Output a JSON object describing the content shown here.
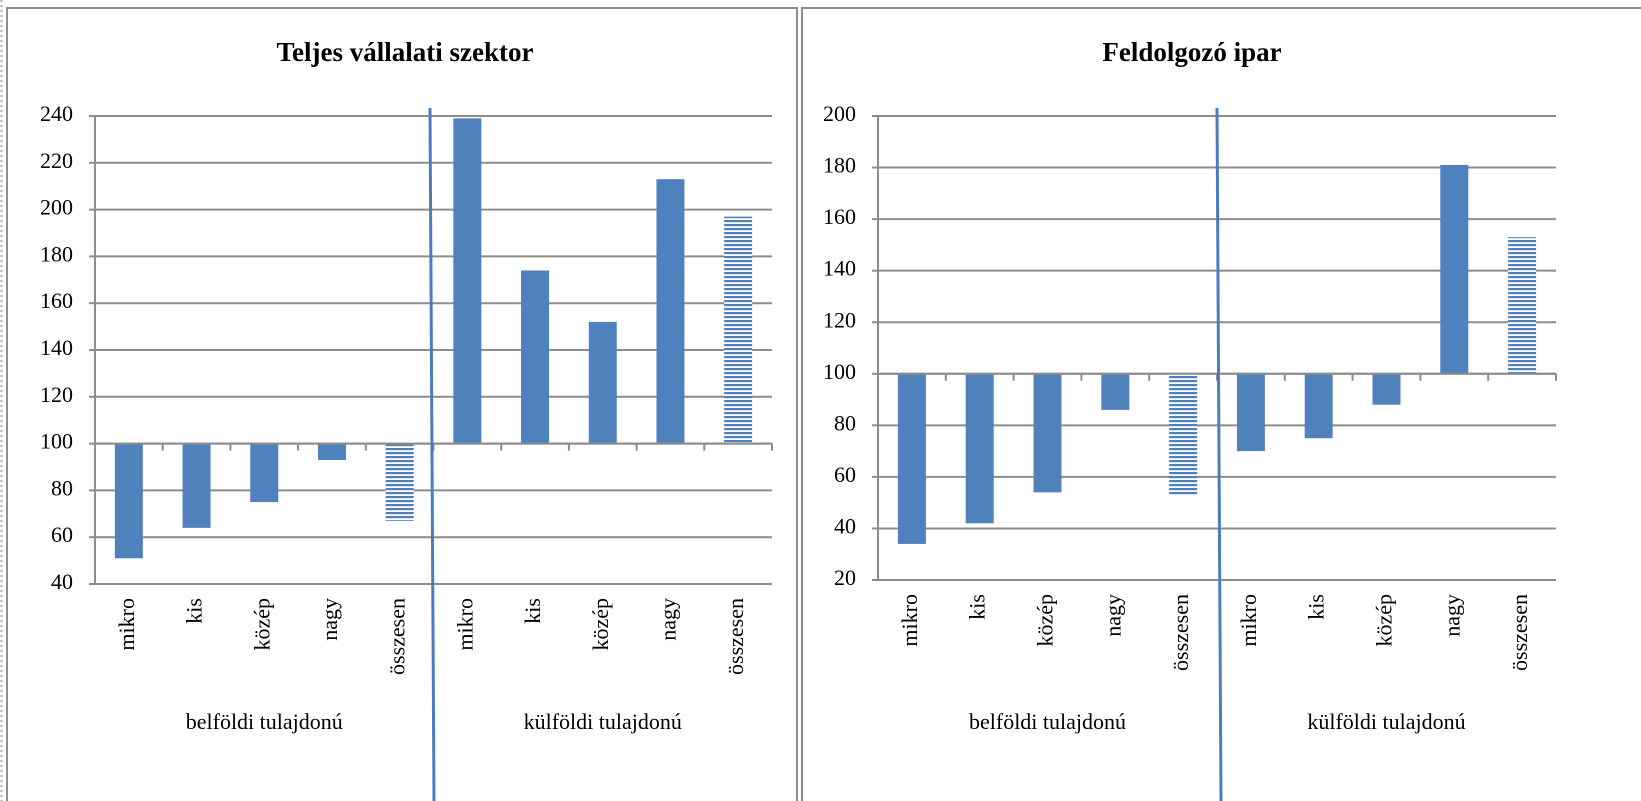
{
  "chart_data": [
    {
      "type": "bar",
      "title": "Teljes vállalati szektor",
      "categories": [
        "mikro",
        "kis",
        "közép",
        "nagy",
        "összesen",
        "mikro",
        "kis",
        "közép",
        "nagy",
        "összesen"
      ],
      "groups": [
        "belföldi  tulajdonú",
        "külföldi tulajdonú"
      ],
      "values": [
        51,
        64,
        75,
        93,
        67,
        239,
        174,
        152,
        213,
        197
      ],
      "hatched": [
        false,
        false,
        false,
        false,
        true,
        false,
        false,
        false,
        false,
        true
      ],
      "baseline": 100,
      "color": "#4f81bd",
      "ylim": [
        40,
        240
      ],
      "yticks": [
        40,
        60,
        80,
        100,
        120,
        140,
        160,
        180,
        200,
        220,
        240
      ],
      "grid": true
    },
    {
      "type": "bar",
      "title": "Feldolgozó ipar",
      "categories": [
        "mikro",
        "kis",
        "közép",
        "nagy",
        "összesen",
        "mikro",
        "kis",
        "közép",
        "nagy",
        "összesen"
      ],
      "groups": [
        "belföldi  tulajdonú",
        "külföldi tulajdonú"
      ],
      "values": [
        34,
        42,
        54,
        86,
        53,
        70,
        75,
        88,
        181,
        153
      ],
      "hatched": [
        false,
        false,
        false,
        false,
        true,
        false,
        false,
        false,
        false,
        true
      ],
      "baseline": 100,
      "color": "#4f81bd",
      "ylim": [
        20,
        200
      ],
      "yticks": [
        20,
        40,
        60,
        80,
        100,
        120,
        140,
        160,
        180,
        200
      ],
      "grid": true
    }
  ]
}
